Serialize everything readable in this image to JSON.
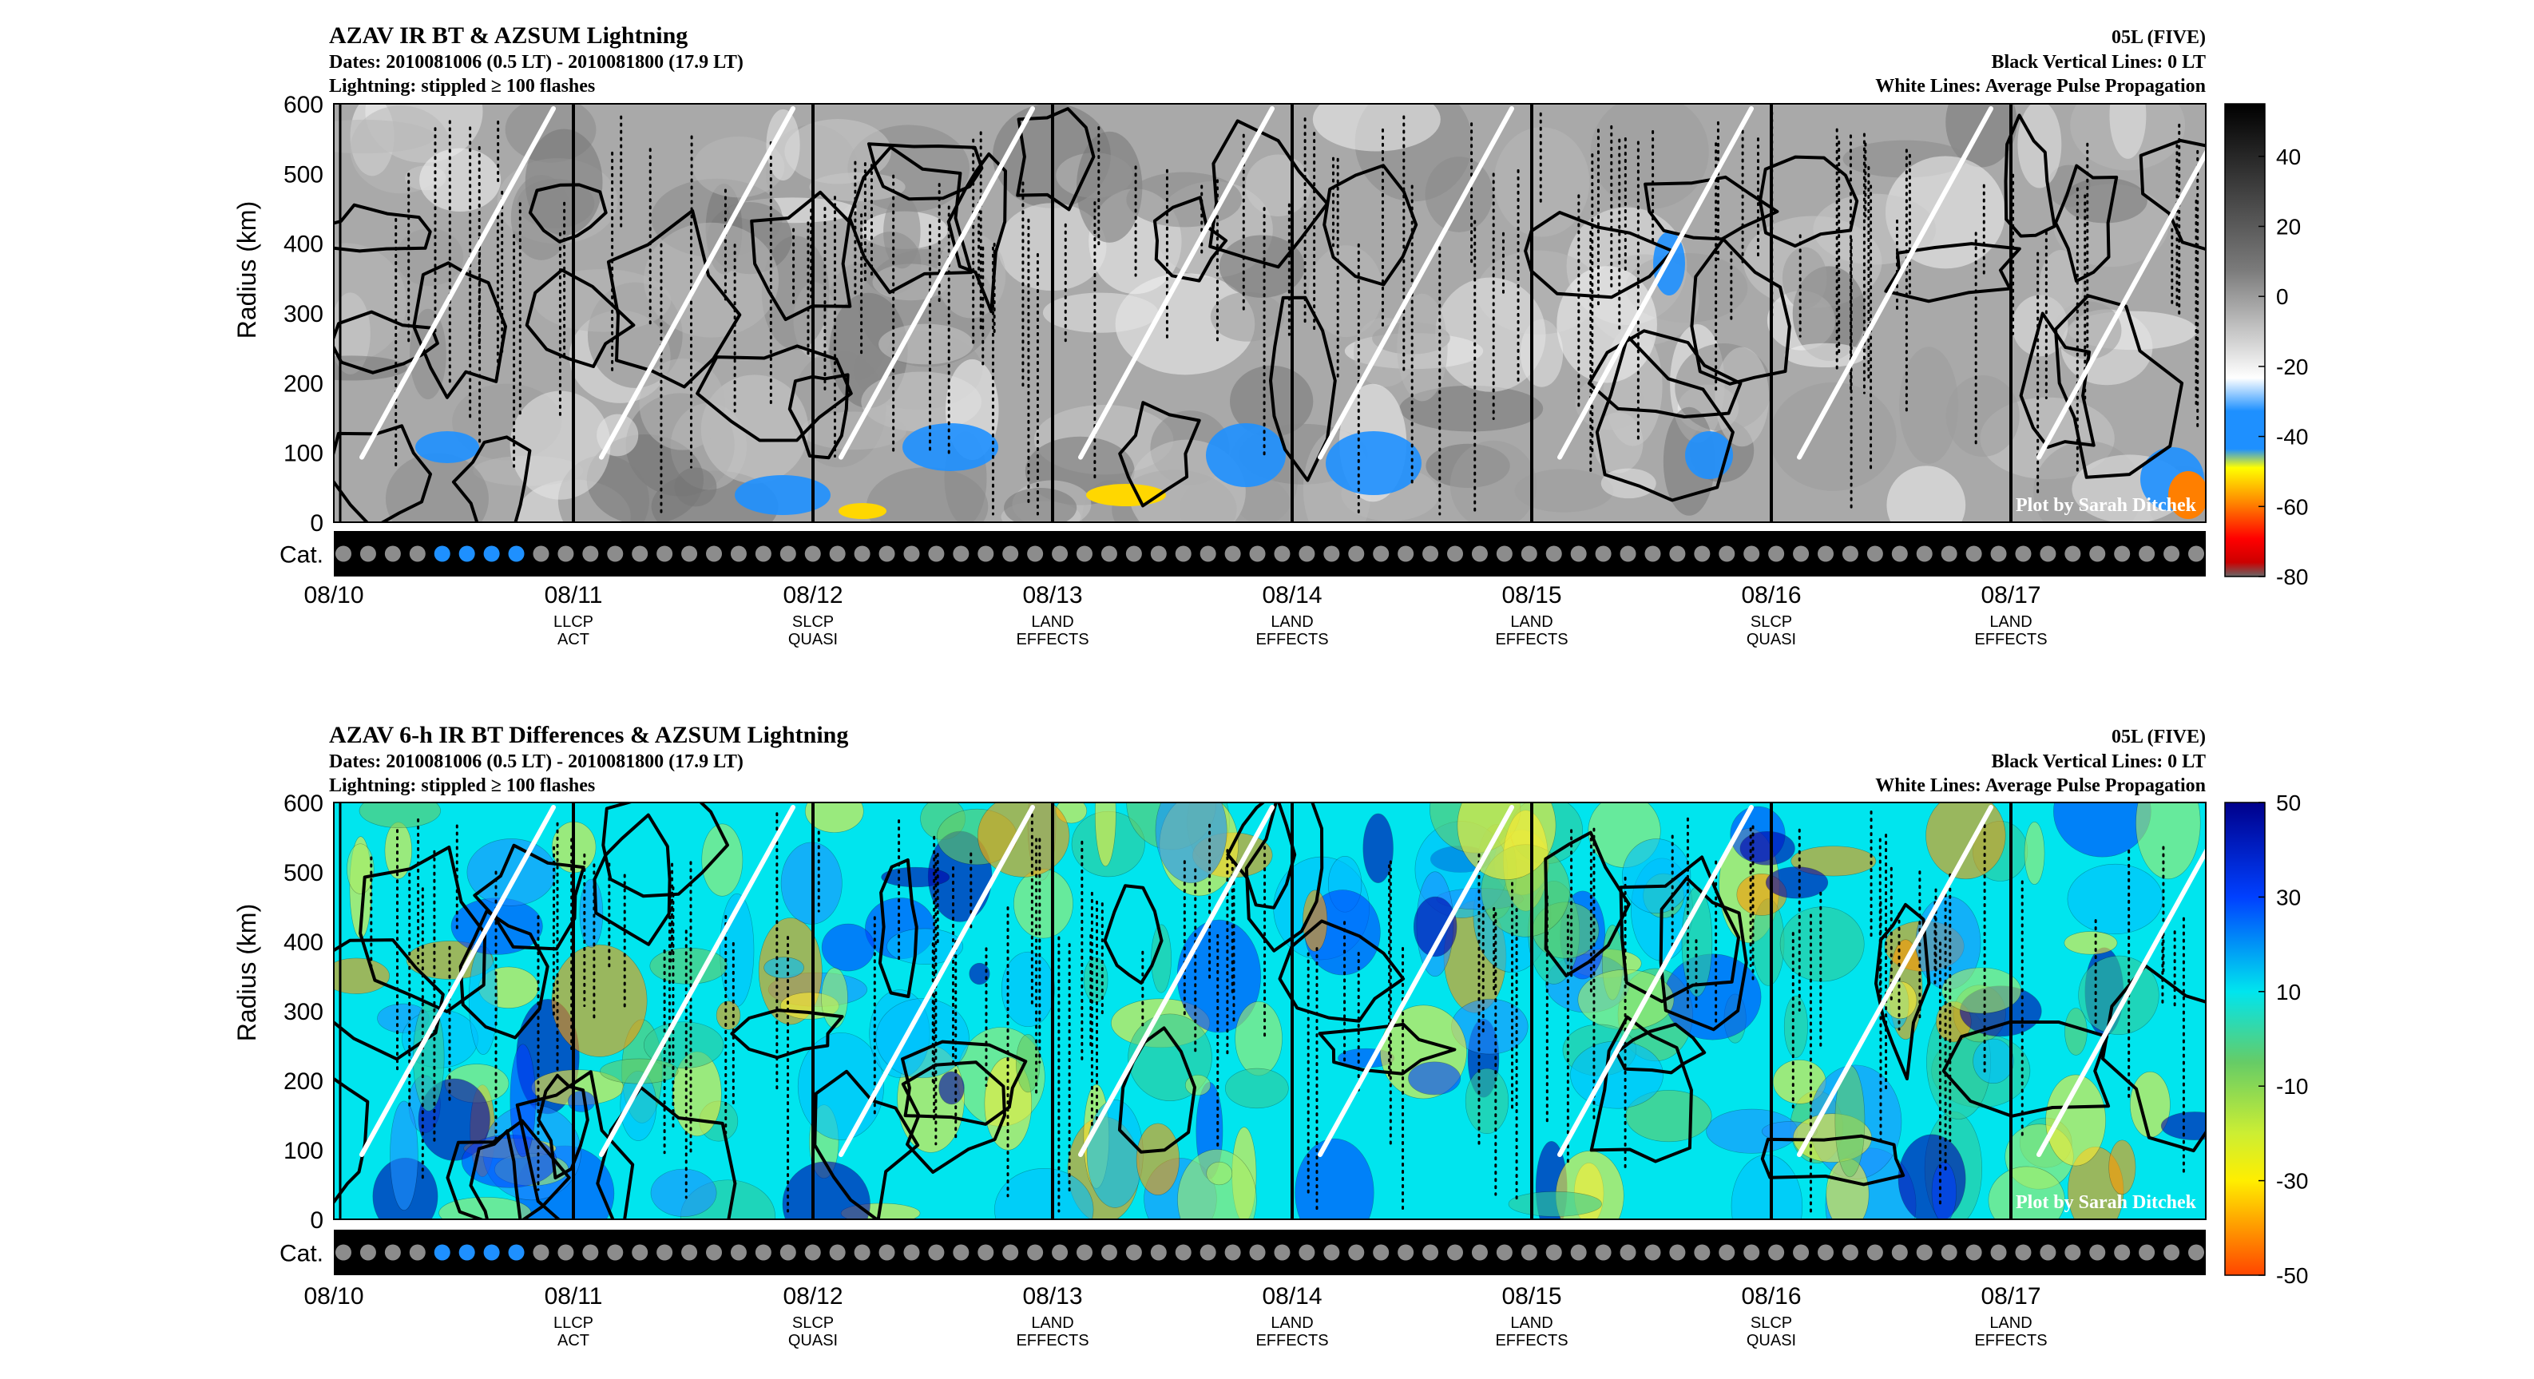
{
  "chart_data": [
    {
      "type": "heatmap",
      "title": "AZAV IR BT & AZSUM Lightning",
      "subtitle_lines": [
        "Dates: 2010081006 (0.5 LT) - 2010081800 (17.9 LT)",
        "Lightning: stippled ≥ 100 flashes"
      ],
      "right_lines": [
        "05L (FIVE)",
        "Black Vertical Lines: 0 LT",
        "White Lines: Average Pulse Propagation"
      ],
      "ylabel": "Radius (km)",
      "ylim": [
        0,
        600
      ],
      "yticks": [
        "0",
        "100",
        "200",
        "300",
        "400",
        "500",
        "600"
      ],
      "xticks": [
        "08/10",
        "08/11",
        "08/12",
        "08/13",
        "08/14",
        "08/15",
        "08/16",
        "08/17"
      ],
      "day_labels": [
        [
          "LLCP",
          "ACT"
        ],
        [
          "SLCP",
          "QUASI"
        ],
        [
          "LAND",
          "EFFECTS"
        ],
        [
          "LAND",
          "EFFECTS"
        ],
        [
          "LAND",
          "EFFECTS"
        ],
        [
          "SLCP",
          "QUASI"
        ],
        [
          "LAND",
          "EFFECTS"
        ]
      ],
      "cat_label": "Cat.",
      "cat_active": [
        4,
        5,
        6,
        7
      ],
      "cat_count": 76,
      "colorbar_ticks": [
        "40",
        "20",
        "0",
        "-20",
        "-40",
        "-60",
        "-80"
      ],
      "clim": [
        -80,
        55
      ],
      "credit": "Plot by Sarah Ditchek"
    },
    {
      "type": "heatmap",
      "title": "AZAV 6-h IR BT Differences & AZSUM Lightning",
      "subtitle_lines": [
        "Dates: 2010081006 (0.5 LT) - 2010081800 (17.9 LT)",
        "Lightning: stippled ≥ 100 flashes"
      ],
      "right_lines": [
        "05L (FIVE)",
        "Black Vertical Lines: 0 LT",
        "White Lines: Average Pulse Propagation"
      ],
      "ylabel": "Radius (km)",
      "ylim": [
        0,
        600
      ],
      "yticks": [
        "0",
        "100",
        "200",
        "300",
        "400",
        "500",
        "600"
      ],
      "xticks": [
        "08/10",
        "08/11",
        "08/12",
        "08/13",
        "08/14",
        "08/15",
        "08/16",
        "08/17"
      ],
      "day_labels": [
        [
          "LLCP",
          "ACT"
        ],
        [
          "SLCP",
          "QUASI"
        ],
        [
          "LAND",
          "EFFECTS"
        ],
        [
          "LAND",
          "EFFECTS"
        ],
        [
          "LAND",
          "EFFECTS"
        ],
        [
          "SLCP",
          "QUASI"
        ],
        [
          "LAND",
          "EFFECTS"
        ]
      ],
      "cat_label": "Cat.",
      "cat_active": [
        4,
        5,
        6,
        7
      ],
      "cat_count": 76,
      "colorbar_ticks": [
        "50",
        "30",
        "10",
        "-10",
        "-30",
        "-50"
      ],
      "clim": [
        -50,
        50
      ],
      "credit": "Plot by Sarah Ditchek"
    }
  ],
  "colors": {
    "cat_dot": "#8c8c8c",
    "cat_active_dot": "#1e90ff",
    "pulse_line": "#ffffff",
    "stipple": "#000000"
  }
}
